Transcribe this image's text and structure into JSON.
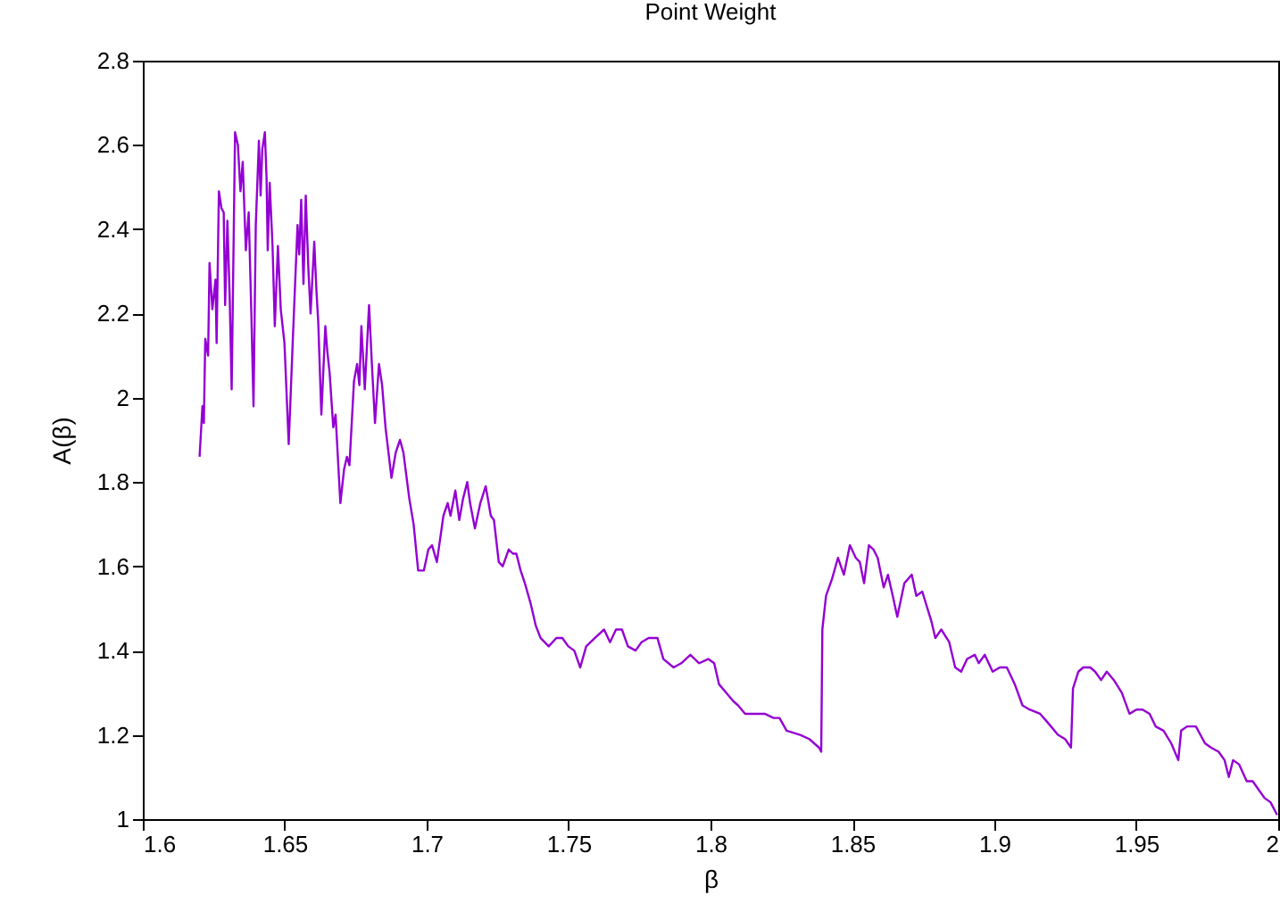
{
  "chart_data": {
    "type": "line",
    "title": "Point Weight",
    "xlabel": "β",
    "ylabel": "A(β)",
    "xlim": [
      1.6,
      2
    ],
    "xticks": [
      1.6,
      1.65,
      1.7,
      1.75,
      1.8,
      1.85,
      1.9,
      1.95,
      2
    ],
    "ylim": [
      1,
      2.8
    ],
    "yticks": [
      1,
      1.2,
      1.4,
      1.6,
      1.8,
      2,
      2.2,
      2.4,
      2.6,
      2.8
    ],
    "grid": false,
    "marker": "none",
    "line_style": "solid",
    "series": [
      {
        "color": "#9400d3",
        "x": [
          1.62,
          1.621,
          1.6215,
          1.622,
          1.623,
          1.6235,
          1.6245,
          1.6256,
          1.626,
          1.6268,
          1.6277,
          1.6285,
          1.629,
          1.6298,
          1.6306,
          1.6313,
          1.6325,
          1.6335,
          1.6344,
          1.6352,
          1.6363,
          1.6373,
          1.6382,
          1.639,
          1.6398,
          1.6409,
          1.6415,
          1.6421,
          1.643,
          1.6436,
          1.644,
          1.6447,
          1.6457,
          1.6465,
          1.6476,
          1.6486,
          1.6499,
          1.6514,
          1.6528,
          1.6545,
          1.6551,
          1.6558,
          1.6566,
          1.6574,
          1.6583,
          1.6591,
          1.6604,
          1.6612,
          1.6618,
          1.6629,
          1.6643,
          1.665,
          1.6658,
          1.6671,
          1.6679,
          1.6696,
          1.6709,
          1.6719,
          1.6728,
          1.6744,
          1.6755,
          1.6763,
          1.677,
          1.6782,
          1.6797,
          1.6807,
          1.6818,
          1.6832,
          1.6843,
          1.6855,
          1.6876,
          1.6891,
          1.6906,
          1.6918,
          1.6939,
          1.6954,
          1.697,
          1.699,
          1.7006,
          1.7019,
          1.7036,
          1.7059,
          1.7074,
          1.7084,
          1.7101,
          1.7115,
          1.7128,
          1.7143,
          1.7153,
          1.717,
          1.7189,
          1.7208,
          1.7226,
          1.7237,
          1.7254,
          1.7268,
          1.7289,
          1.7304,
          1.7316,
          1.7331,
          1.7346,
          1.7367,
          1.7384,
          1.7401,
          1.743,
          1.7457,
          1.7478,
          1.7499,
          1.752,
          1.7541,
          1.7562,
          1.7593,
          1.7625,
          1.7646,
          1.7667,
          1.7688,
          1.7709,
          1.7736,
          1.7757,
          1.7782,
          1.7813,
          1.7834,
          1.787,
          1.7897,
          1.7929,
          1.796,
          1.7992,
          1.8013,
          1.803,
          1.8055,
          1.808,
          1.8097,
          1.8122,
          1.816,
          1.8191,
          1.8222,
          1.8243,
          1.8268,
          1.8316,
          1.8348,
          1.8382,
          1.839,
          1.8394,
          1.8407,
          1.8428,
          1.8449,
          1.847,
          1.8491,
          1.8512,
          1.8526,
          1.8541,
          1.8558,
          1.8574,
          1.8589,
          1.861,
          1.8625,
          1.8642,
          1.8658,
          1.8683,
          1.8709,
          1.8725,
          1.8746,
          1.8778,
          1.8792,
          1.8813,
          1.8841,
          1.8862,
          1.8883,
          1.8904,
          1.8931,
          1.8945,
          1.8966,
          1.8994,
          1.9019,
          1.9044,
          1.9072,
          1.9099,
          1.9124,
          1.9161,
          1.9187,
          1.9224,
          1.9249,
          1.927,
          1.9277,
          1.9296,
          1.9313,
          1.9338,
          1.9355,
          1.9376,
          1.9396,
          1.9421,
          1.9449,
          1.9476,
          1.9501,
          1.9522,
          1.9547,
          1.9568,
          1.9596,
          1.9623,
          1.9648,
          1.9658,
          1.9679,
          1.971,
          1.9742,
          1.9763,
          1.979,
          1.9811,
          1.9826,
          1.9841,
          1.9862,
          1.9889,
          1.991,
          1.9931,
          1.9952,
          1.9973,
          1.9996
        ],
        "values": [
          1.86,
          1.98,
          1.94,
          2.14,
          2.1,
          2.32,
          2.21,
          2.28,
          2.13,
          2.49,
          2.45,
          2.44,
          2.22,
          2.42,
          2.24,
          2.02,
          2.63,
          2.6,
          2.49,
          2.56,
          2.35,
          2.44,
          2.21,
          1.98,
          2.41,
          2.61,
          2.48,
          2.59,
          2.63,
          2.52,
          2.35,
          2.51,
          2.36,
          2.17,
          2.36,
          2.21,
          2.13,
          1.89,
          2.13,
          2.41,
          2.34,
          2.47,
          2.27,
          2.48,
          2.31,
          2.2,
          2.37,
          2.25,
          2.18,
          1.96,
          2.17,
          2.11,
          2.06,
          1.93,
          1.96,
          1.75,
          1.83,
          1.86,
          1.84,
          2.04,
          2.08,
          2.03,
          2.17,
          2.02,
          2.22,
          2.08,
          1.94,
          2.08,
          2.03,
          1.93,
          1.81,
          1.87,
          1.9,
          1.87,
          1.76,
          1.7,
          1.59,
          1.59,
          1.64,
          1.65,
          1.61,
          1.72,
          1.75,
          1.72,
          1.78,
          1.71,
          1.76,
          1.8,
          1.75,
          1.69,
          1.75,
          1.79,
          1.72,
          1.71,
          1.61,
          1.6,
          1.64,
          1.63,
          1.63,
          1.59,
          1.56,
          1.51,
          1.46,
          1.43,
          1.41,
          1.43,
          1.43,
          1.41,
          1.4,
          1.36,
          1.41,
          1.43,
          1.45,
          1.42,
          1.45,
          1.45,
          1.41,
          1.4,
          1.42,
          1.43,
          1.43,
          1.38,
          1.36,
          1.37,
          1.39,
          1.37,
          1.38,
          1.37,
          1.32,
          1.3,
          1.28,
          1.27,
          1.25,
          1.25,
          1.25,
          1.24,
          1.24,
          1.21,
          1.2,
          1.19,
          1.17,
          1.16,
          1.45,
          1.53,
          1.57,
          1.62,
          1.58,
          1.65,
          1.62,
          1.61,
          1.56,
          1.65,
          1.64,
          1.62,
          1.55,
          1.58,
          1.53,
          1.48,
          1.56,
          1.58,
          1.53,
          1.54,
          1.47,
          1.43,
          1.45,
          1.42,
          1.36,
          1.35,
          1.38,
          1.39,
          1.37,
          1.39,
          1.35,
          1.36,
          1.36,
          1.32,
          1.27,
          1.26,
          1.25,
          1.23,
          1.2,
          1.19,
          1.17,
          1.31,
          1.35,
          1.36,
          1.36,
          1.35,
          1.33,
          1.35,
          1.33,
          1.3,
          1.25,
          1.26,
          1.26,
          1.25,
          1.22,
          1.21,
          1.18,
          1.14,
          1.21,
          1.22,
          1.22,
          1.18,
          1.17,
          1.16,
          1.14,
          1.1,
          1.14,
          1.13,
          1.09,
          1.09,
          1.07,
          1.05,
          1.04,
          1.01
        ]
      }
    ]
  }
}
